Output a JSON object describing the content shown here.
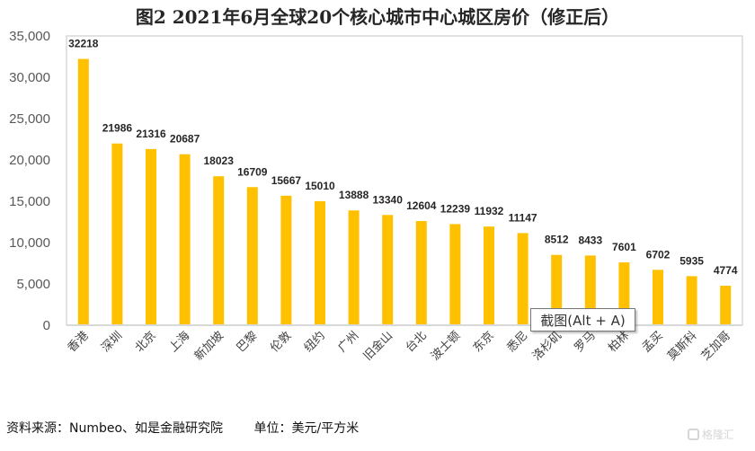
{
  "chart_data": {
    "type": "bar",
    "title": "图2 2021年6月全球20个核心城市中心城区房价（修正后）",
    "xlabel": "",
    "ylabel": "",
    "ylim": [
      0,
      35000
    ],
    "yticks": [
      0,
      5000,
      10000,
      15000,
      20000,
      25000,
      30000,
      35000
    ],
    "ytick_labels": [
      "0",
      "5,000",
      "10,000",
      "15,000",
      "20,000",
      "25,000",
      "30,000",
      "35,000"
    ],
    "grid": false,
    "categories": [
      "香港",
      "深圳",
      "北京",
      "上海",
      "新加坡",
      "巴黎",
      "伦敦",
      "纽约",
      "广州",
      "旧金山",
      "台北",
      "波士顿",
      "东京",
      "悉尼",
      "洛杉矶",
      "罗马",
      "柏林",
      "孟买",
      "莫斯科",
      "芝加哥"
    ],
    "values": [
      32218,
      21986,
      21316,
      20687,
      18023,
      16709,
      15667,
      15010,
      13888,
      13340,
      12604,
      12239,
      11932,
      11147,
      8512,
      8433,
      7601,
      6702,
      5935,
      4774
    ],
    "data_labels": [
      "32218",
      "21986",
      "21316",
      "20687",
      "18023",
      "16709",
      "15667",
      "15010",
      "13888",
      "13340",
      "12604",
      "12239",
      "11932",
      "11147",
      "8512",
      "8433",
      "7601",
      "6702",
      "5935",
      "4774"
    ],
    "bar_color": "#FFC000"
  },
  "footer": {
    "source": "资料来源：Numbeo、如是金融研究院",
    "unit": "单位：美元/平方米"
  },
  "tooltip": {
    "text": "截图(Alt + A)"
  },
  "watermark": {
    "text": "格隆汇"
  }
}
